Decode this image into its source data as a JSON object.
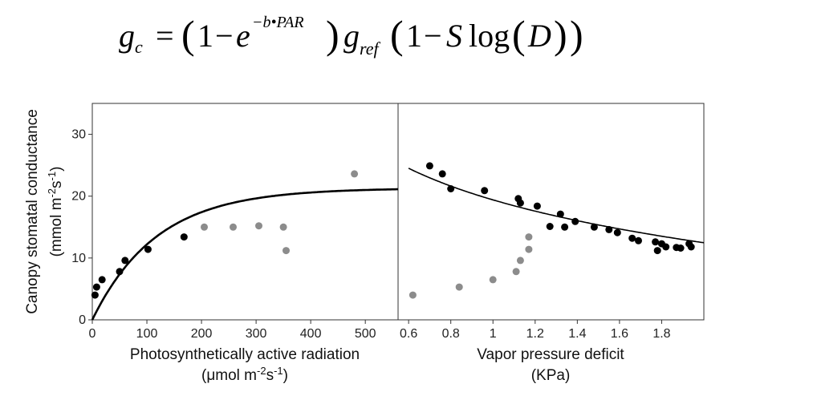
{
  "formula": {
    "g": "g",
    "c": "c",
    "eq": "=",
    "open1": "(",
    "one1": "1",
    "minus1": "−",
    "e": "e",
    "exp": "−b•PAR",
    "close1": ")",
    "gref_g": "g",
    "gref_sub": "ref",
    "open2": "(",
    "one2": "1",
    "minus2": "−",
    "S": "S",
    "log": "log",
    "open3": "(",
    "D": "D",
    "close3": ")",
    "close2": ")"
  },
  "y_axis": {
    "title_line1": "Canopy stomatal conductance",
    "title_line2_pre": "(mmol m",
    "title_line2_sup1": "-2",
    "title_line2_mid": "s",
    "title_line2_sup2": "-1",
    "title_line2_post": ")"
  },
  "left_x_axis": {
    "title_line1": "Photosynthetically active radiation",
    "title_line2_pre": "(μmol m",
    "title_line2_sup1": "-2",
    "title_line2_mid": "s",
    "title_line2_sup2": "-1",
    "title_line2_post": ")"
  },
  "right_x_axis": {
    "title_line1": "Vapor pressure deficit",
    "title_line2": "(KPa)"
  },
  "colors": {
    "black_points": "#000000",
    "gray_points": "#8c8c8c",
    "curve": "#000000",
    "frame": "#333333"
  },
  "chart_data": [
    {
      "type": "scatter",
      "panel": "left",
      "xlim": [
        0,
        560
      ],
      "ylim": [
        0,
        35
      ],
      "xticks": [
        0,
        100,
        200,
        300,
        400,
        500
      ],
      "xtick_labels": [
        "0",
        "100",
        "200",
        "300",
        "400",
        "500"
      ],
      "yticks": [
        0,
        10,
        20,
        30
      ],
      "ytick_labels": [
        "0",
        "10",
        "20",
        "30"
      ],
      "series": [
        {
          "color": "black",
          "points": [
            [
              5,
              4.0
            ],
            [
              8,
              5.3
            ],
            [
              18,
              6.5
            ],
            [
              50,
              7.8
            ],
            [
              60,
              9.6
            ],
            [
              102,
              11.4
            ],
            [
              168,
              13.4
            ]
          ]
        },
        {
          "color": "gray",
          "points": [
            [
              205,
              15.0
            ],
            [
              258,
              15.0
            ],
            [
              305,
              15.2
            ],
            [
              350,
              15.0
            ],
            [
              355,
              11.2
            ],
            [
              480,
              23.6
            ]
          ]
        }
      ],
      "fit_curve": {
        "gmax": 21.3,
        "b": 0.0085
      }
    },
    {
      "type": "scatter",
      "panel": "right",
      "xlim": [
        0.55,
        2.0
      ],
      "ylim": [
        0,
        35
      ],
      "xticks": [
        0.6,
        0.8,
        1.0,
        1.2,
        1.4,
        1.6,
        1.8
      ],
      "xtick_labels": [
        "0.6",
        "0.8",
        "1",
        "1.2",
        "1.4",
        "1.6",
        "1.8"
      ],
      "series": [
        {
          "color": "black",
          "points": [
            [
              0.7,
              24.9
            ],
            [
              0.76,
              23.6
            ],
            [
              0.8,
              21.2
            ],
            [
              0.96,
              20.9
            ],
            [
              1.12,
              19.6
            ],
            [
              1.13,
              18.9
            ],
            [
              1.21,
              18.4
            ],
            [
              1.27,
              15.1
            ],
            [
              1.32,
              17.1
            ],
            [
              1.34,
              15.0
            ],
            [
              1.39,
              15.9
            ],
            [
              1.48,
              15.0
            ],
            [
              1.55,
              14.6
            ],
            [
              1.59,
              14.1
            ],
            [
              1.66,
              13.2
            ],
            [
              1.69,
              12.8
            ],
            [
              1.77,
              12.6
            ],
            [
              1.78,
              11.2
            ],
            [
              1.8,
              12.3
            ],
            [
              1.82,
              11.8
            ],
            [
              1.87,
              11.7
            ],
            [
              1.89,
              11.6
            ],
            [
              1.93,
              12.3
            ],
            [
              1.94,
              11.8
            ]
          ]
        },
        {
          "color": "gray",
          "points": [
            [
              0.62,
              4.0
            ],
            [
              0.84,
              5.3
            ],
            [
              1.0,
              6.5
            ],
            [
              1.11,
              7.8
            ],
            [
              1.13,
              9.6
            ],
            [
              1.17,
              11.4
            ],
            [
              1.17,
              13.4
            ]
          ]
        }
      ],
      "fit_curve": {
        "a": 19.4,
        "k": 10.0
      }
    }
  ]
}
